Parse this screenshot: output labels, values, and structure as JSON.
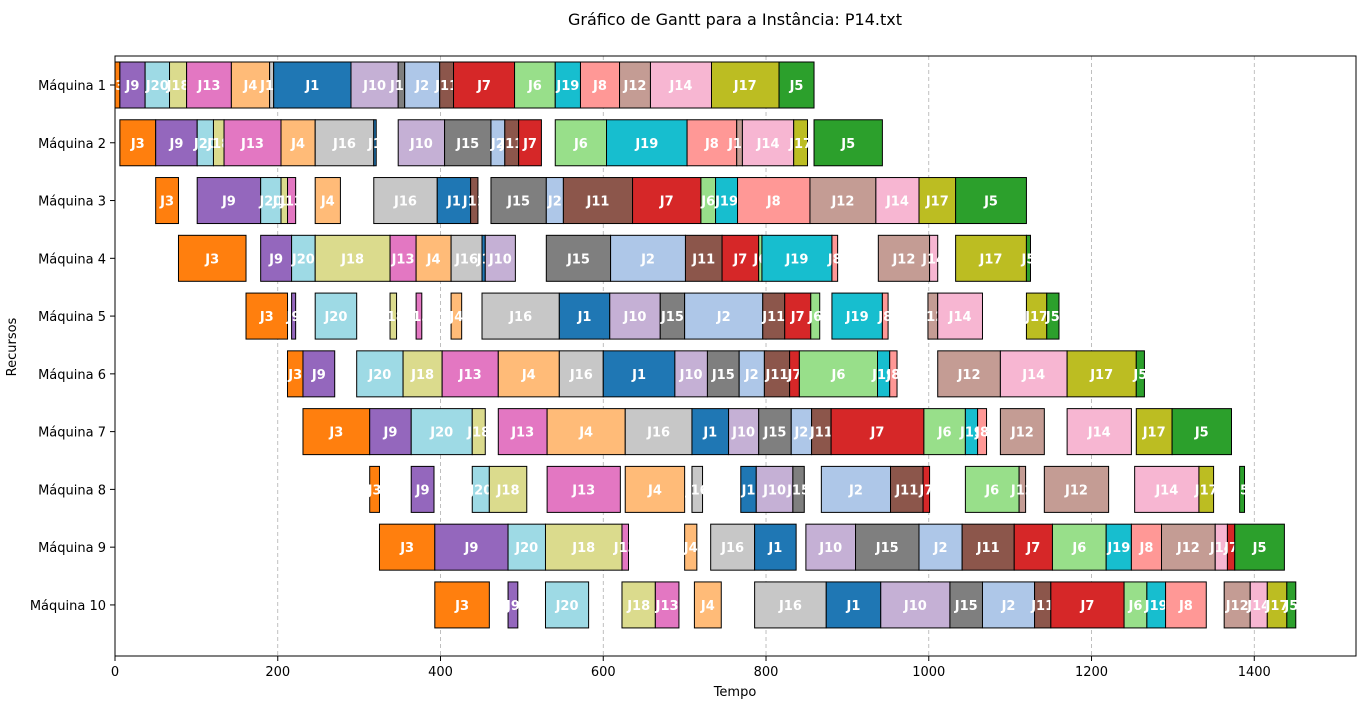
{
  "chart_data": {
    "type": "gantt",
    "title": "Gráfico de Gantt para a Instância: P14.txt",
    "xlabel": "Tempo",
    "ylabel": "Recursos",
    "xlim": [
      0,
      1525
    ],
    "xticks": [
      0,
      200,
      400,
      600,
      800,
      1000,
      1200,
      1400
    ],
    "grid": "vertical-dashed",
    "resources": [
      "Máquina 1",
      "Máquina 2",
      "Máquina 3",
      "Máquina 4",
      "Máquina 5",
      "Máquina 6",
      "Máquina 7",
      "Máquina 8",
      "Máquina 9",
      "Máquina 10"
    ],
    "job_colors": {
      "J1": "#1f77b4",
      "J2": "#aec7e8",
      "J3": "#ff7f0e",
      "J4": "#ffbb78",
      "J5": "#2ca02c",
      "J6": "#98df8a",
      "J7": "#d62728",
      "J8": "#ff9896",
      "J9": "#9467bd",
      "J10": "#c5b0d5",
      "J11": "#8c564b",
      "J12": "#c49c94",
      "J13": "#e377c2",
      "J14": "#f7b6d2",
      "J15": "#7f7f7f",
      "J16": "#c7c7c7",
      "J17": "#bcbd22",
      "J18": "#dbdb8d",
      "J19": "#17becf",
      "J20": "#9edae5"
    },
    "tasks": [
      [
        [
          "J3",
          0,
          6
        ],
        [
          "J9",
          6,
          37
        ],
        [
          "J20",
          37,
          67
        ],
        [
          "J18",
          67,
          88
        ],
        [
          "J13",
          88,
          143
        ],
        [
          "J4",
          143,
          190
        ],
        [
          "J16",
          190,
          195
        ],
        [
          "J1",
          195,
          290
        ],
        [
          "J10",
          290,
          348
        ],
        [
          "J15",
          348,
          356
        ],
        [
          "J2",
          356,
          399
        ],
        [
          "J11",
          399,
          416
        ],
        [
          "J7",
          416,
          491
        ],
        [
          "J6",
          491,
          541
        ],
        [
          "J19",
          541,
          572
        ],
        [
          "J8",
          572,
          620
        ],
        [
          "J12",
          620,
          658
        ],
        [
          "J14",
          658,
          733
        ],
        [
          "J17",
          733,
          816
        ],
        [
          "J5",
          816,
          859
        ]
      ],
      [
        [
          "J3",
          6,
          50
        ],
        [
          "J9",
          50,
          101
        ],
        [
          "J20",
          101,
          121
        ],
        [
          "J18",
          121,
          134
        ],
        [
          "J13",
          134,
          204
        ],
        [
          "J4",
          204,
          246
        ],
        [
          "J16",
          246,
          318
        ],
        [
          "J1",
          318,
          321
        ],
        [
          "J10",
          348,
          405
        ],
        [
          "J15",
          405,
          462
        ],
        [
          "J2",
          462,
          479
        ],
        [
          "J11",
          479,
          496
        ],
        [
          "J7",
          496,
          524
        ],
        [
          "J6",
          541,
          604
        ],
        [
          "J19",
          604,
          703
        ],
        [
          "J8",
          703,
          764
        ],
        [
          "J12",
          764,
          771
        ],
        [
          "J14",
          771,
          834
        ],
        [
          "J17",
          834,
          851
        ],
        [
          "J5",
          859,
          943
        ]
      ],
      [
        [
          "J3",
          50,
          78
        ],
        [
          "J9",
          101,
          179
        ],
        [
          "J20",
          179,
          204
        ],
        [
          "J18",
          204,
          212
        ],
        [
          "J13",
          212,
          222
        ],
        [
          "J4",
          246,
          277
        ],
        [
          "J16",
          318,
          396
        ],
        [
          "J1",
          396,
          437
        ],
        [
          "J11",
          437,
          446
        ],
        [
          "J15",
          462,
          530
        ],
        [
          "J2",
          530,
          551
        ],
        [
          "J11",
          551,
          636
        ],
        [
          "J7",
          636,
          720
        ],
        [
          "J6",
          720,
          738
        ],
        [
          "J19",
          738,
          765
        ],
        [
          "J8",
          765,
          854
        ],
        [
          "J12",
          854,
          935
        ],
        [
          "J14",
          935,
          988
        ],
        [
          "J17",
          988,
          1033
        ],
        [
          "J5",
          1033,
          1120
        ]
      ],
      [
        [
          "J3",
          78,
          161
        ],
        [
          "J9",
          179,
          217
        ],
        [
          "J20",
          217,
          246
        ],
        [
          "J18",
          246,
          338
        ],
        [
          "J13",
          338,
          370
        ],
        [
          "J4",
          370,
          413
        ],
        [
          "J16",
          413,
          451
        ],
        [
          "J1",
          451,
          455
        ],
        [
          "J10",
          455,
          492
        ],
        [
          "J15",
          530,
          609
        ],
        [
          "J2",
          609,
          701
        ],
        [
          "J11",
          701,
          746
        ],
        [
          "J7",
          746,
          791
        ],
        [
          "J6",
          791,
          795
        ],
        [
          "J19",
          795,
          881
        ],
        [
          "J8",
          881,
          888
        ],
        [
          "J12",
          938,
          1001
        ],
        [
          "J14",
          1001,
          1011
        ],
        [
          "J17",
          1033,
          1120
        ],
        [
          "J5",
          1120,
          1125
        ]
      ],
      [
        [
          "J3",
          161,
          212
        ],
        [
          "J9",
          217,
          222
        ],
        [
          "J20",
          246,
          297
        ],
        [
          "J18",
          338,
          346
        ],
        [
          "J13",
          370,
          377
        ],
        [
          "J4",
          413,
          426
        ],
        [
          "J16",
          451,
          546
        ],
        [
          "J1",
          546,
          608
        ],
        [
          "J10",
          608,
          670
        ],
        [
          "J15",
          670,
          700
        ],
        [
          "J2",
          700,
          796
        ],
        [
          "J11",
          796,
          823
        ],
        [
          "J7",
          823,
          855
        ],
        [
          "J6",
          855,
          866
        ],
        [
          "J19",
          881,
          943
        ],
        [
          "J8",
          943,
          950
        ],
        [
          "J12",
          999,
          1011
        ],
        [
          "J14",
          1011,
          1066
        ],
        [
          "J17",
          1120,
          1145
        ],
        [
          "J5",
          1145,
          1160
        ]
      ],
      [
        [
          "J3",
          212,
          231
        ],
        [
          "J9",
          231,
          270
        ],
        [
          "J20",
          297,
          354
        ],
        [
          "J18",
          354,
          402
        ],
        [
          "J13",
          402,
          471
        ],
        [
          "J4",
          471,
          546
        ],
        [
          "J16",
          546,
          600
        ],
        [
          "J1",
          600,
          688
        ],
        [
          "J10",
          688,
          728
        ],
        [
          "J15",
          728,
          767
        ],
        [
          "J2",
          767,
          798
        ],
        [
          "J11",
          798,
          829
        ],
        [
          "J7",
          829,
          841
        ],
        [
          "J6",
          841,
          937
        ],
        [
          "J19",
          937,
          952
        ],
        [
          "J8",
          952,
          961
        ],
        [
          "J12",
          1011,
          1088
        ],
        [
          "J14",
          1088,
          1170
        ],
        [
          "J17",
          1170,
          1255
        ],
        [
          "J5",
          1255,
          1265
        ]
      ],
      [
        [
          "J3",
          231,
          313
        ],
        [
          "J9",
          313,
          364
        ],
        [
          "J20",
          364,
          439
        ],
        [
          "J18",
          439,
          455
        ],
        [
          "J13",
          471,
          531
        ],
        [
          "J4",
          531,
          627
        ],
        [
          "J16",
          627,
          709
        ],
        [
          "J1",
          709,
          754
        ],
        [
          "J10",
          754,
          791
        ],
        [
          "J15",
          791,
          831
        ],
        [
          "J2",
          831,
          856
        ],
        [
          "J11",
          856,
          880
        ],
        [
          "J7",
          880,
          994
        ],
        [
          "J6",
          994,
          1045
        ],
        [
          "J19",
          1045,
          1060
        ],
        [
          "J8",
          1060,
          1071
        ],
        [
          "J12",
          1088,
          1142
        ],
        [
          "J14",
          1170,
          1249
        ],
        [
          "J17",
          1255,
          1299
        ],
        [
          "J5",
          1299,
          1372
        ]
      ],
      [
        [
          "J3",
          313,
          325
        ],
        [
          "J9",
          364,
          392
        ],
        [
          "J20",
          439,
          460
        ],
        [
          "J18",
          460,
          506
        ],
        [
          "J13",
          531,
          621
        ],
        [
          "J4",
          627,
          700
        ],
        [
          "J16",
          709,
          722
        ],
        [
          "J1",
          769,
          788
        ],
        [
          "J10",
          788,
          833
        ],
        [
          "J15",
          833,
          847
        ],
        [
          "J2",
          868,
          953
        ],
        [
          "J11",
          953,
          993
        ],
        [
          "J7",
          993,
          1001
        ],
        [
          "J6",
          1045,
          1111
        ],
        [
          "J12",
          1111,
          1119
        ],
        [
          "J12",
          1142,
          1221
        ],
        [
          "J14",
          1253,
          1332
        ],
        [
          "J17",
          1332,
          1350
        ],
        [
          "J5",
          1382,
          1388
        ]
      ],
      [
        [
          "J3",
          325,
          393
        ],
        [
          "J9",
          393,
          483
        ],
        [
          "J20",
          483,
          529
        ],
        [
          "J18",
          529,
          623
        ],
        [
          "J13",
          623,
          631
        ],
        [
          "J4",
          700,
          715
        ],
        [
          "J16",
          732,
          786
        ],
        [
          "J1",
          786,
          837
        ],
        [
          "J10",
          849,
          910
        ],
        [
          "J15",
          910,
          988
        ],
        [
          "J2",
          988,
          1041
        ],
        [
          "J11",
          1041,
          1105
        ],
        [
          "J7",
          1105,
          1152
        ],
        [
          "J6",
          1152,
          1218
        ],
        [
          "J19",
          1218,
          1249
        ],
        [
          "J8",
          1249,
          1286
        ],
        [
          "J12",
          1286,
          1352
        ],
        [
          "J14",
          1352,
          1367
        ],
        [
          "J7",
          1367,
          1376
        ],
        [
          "J5",
          1376,
          1437
        ]
      ],
      [
        [
          "J3",
          393,
          460
        ],
        [
          "J9",
          483,
          495
        ],
        [
          "J20",
          529,
          582
        ],
        [
          "J18",
          623,
          664
        ],
        [
          "J13",
          664,
          693
        ],
        [
          "J4",
          712,
          745
        ],
        [
          "J16",
          786,
          874
        ],
        [
          "J1",
          874,
          941
        ],
        [
          "J10",
          941,
          1026
        ],
        [
          "J15",
          1026,
          1066
        ],
        [
          "J2",
          1066,
          1130
        ],
        [
          "J11",
          1130,
          1150
        ],
        [
          "J7",
          1150,
          1240
        ],
        [
          "J6",
          1240,
          1268
        ],
        [
          "J19",
          1268,
          1291
        ],
        [
          "J8",
          1291,
          1341
        ],
        [
          "J12",
          1363,
          1395
        ],
        [
          "J14",
          1395,
          1416
        ],
        [
          "J17",
          1416,
          1440
        ],
        [
          "J5",
          1440,
          1451
        ]
      ]
    ]
  }
}
